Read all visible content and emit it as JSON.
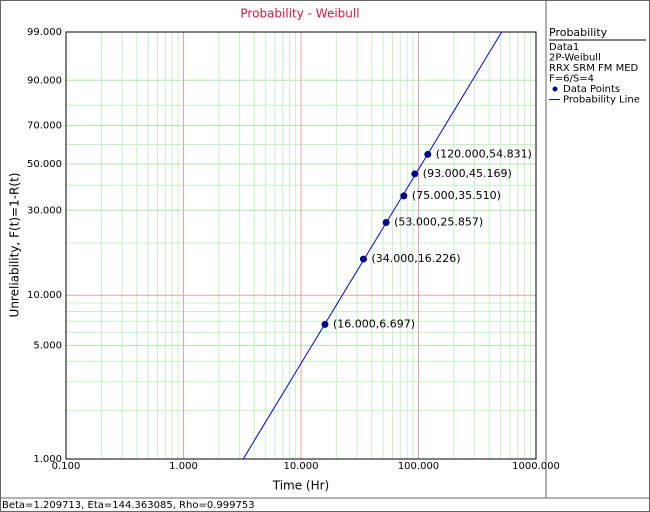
{
  "chart_data": {
    "type": "weibull-probability",
    "title": "Probability - Weibull",
    "x_label": "Time (Hr)",
    "y_label": "Unreliability, F(t)=1-R(t)",
    "xscale": "log",
    "yscale": "weibull",
    "xlim": [
      0.1,
      1000
    ],
    "xticks": [
      {
        "value": 0.1,
        "label": "0.100"
      },
      {
        "value": 1,
        "label": "1.000"
      },
      {
        "value": 10,
        "label": "10.000"
      },
      {
        "value": 100,
        "label": "100.000"
      },
      {
        "value": 1000,
        "label": "1000.000"
      }
    ],
    "xminor": [
      0.2,
      0.3,
      0.4,
      0.5,
      0.6,
      0.7,
      0.8,
      0.9,
      2,
      3,
      4,
      5,
      6,
      7,
      8,
      9,
      20,
      30,
      40,
      50,
      60,
      70,
      80,
      90,
      200,
      300,
      400,
      500,
      600,
      700,
      800,
      900
    ],
    "ylim": [
      1,
      99
    ],
    "yticks": [
      {
        "value": 1,
        "label": "1.000"
      },
      {
        "value": 5,
        "label": "5.000"
      },
      {
        "value": 10,
        "label": "10.000"
      },
      {
        "value": 30,
        "label": "30.000"
      },
      {
        "value": 50,
        "label": "50.000"
      },
      {
        "value": 70,
        "label": "70.000"
      },
      {
        "value": 90,
        "label": "90.000"
      },
      {
        "value": 99,
        "label": "99.000"
      }
    ],
    "yminor": [
      2,
      3,
      4,
      6,
      7,
      8,
      9,
      20,
      40,
      60,
      80
    ],
    "grid": true,
    "legend_title": "Probability",
    "legend_info": [
      "Data1",
      "2P-Weibull",
      "RRX SRM FM MED",
      "F=6/S=4"
    ],
    "series": [
      {
        "name": "Data Points",
        "color": "#00008b",
        "x": [
          16,
          34,
          53,
          75,
          93,
          120
        ],
        "values": [
          6.697,
          16.226,
          25.857,
          35.51,
          45.169,
          54.831
        ],
        "value_labels": [
          "(16.000,6.697)",
          "(34.000,16.226)",
          "(53.000,25.857)",
          "(75.000,35.510)",
          "(93.000,45.169)",
          "(120.000,54.831)"
        ]
      },
      {
        "name": "Probability Line",
        "color": "#0000ff",
        "beta": 1.209713,
        "eta": 144.363085
      }
    ],
    "footer": "Beta=1.209713, Eta=144.363085, Rho=0.999753"
  }
}
